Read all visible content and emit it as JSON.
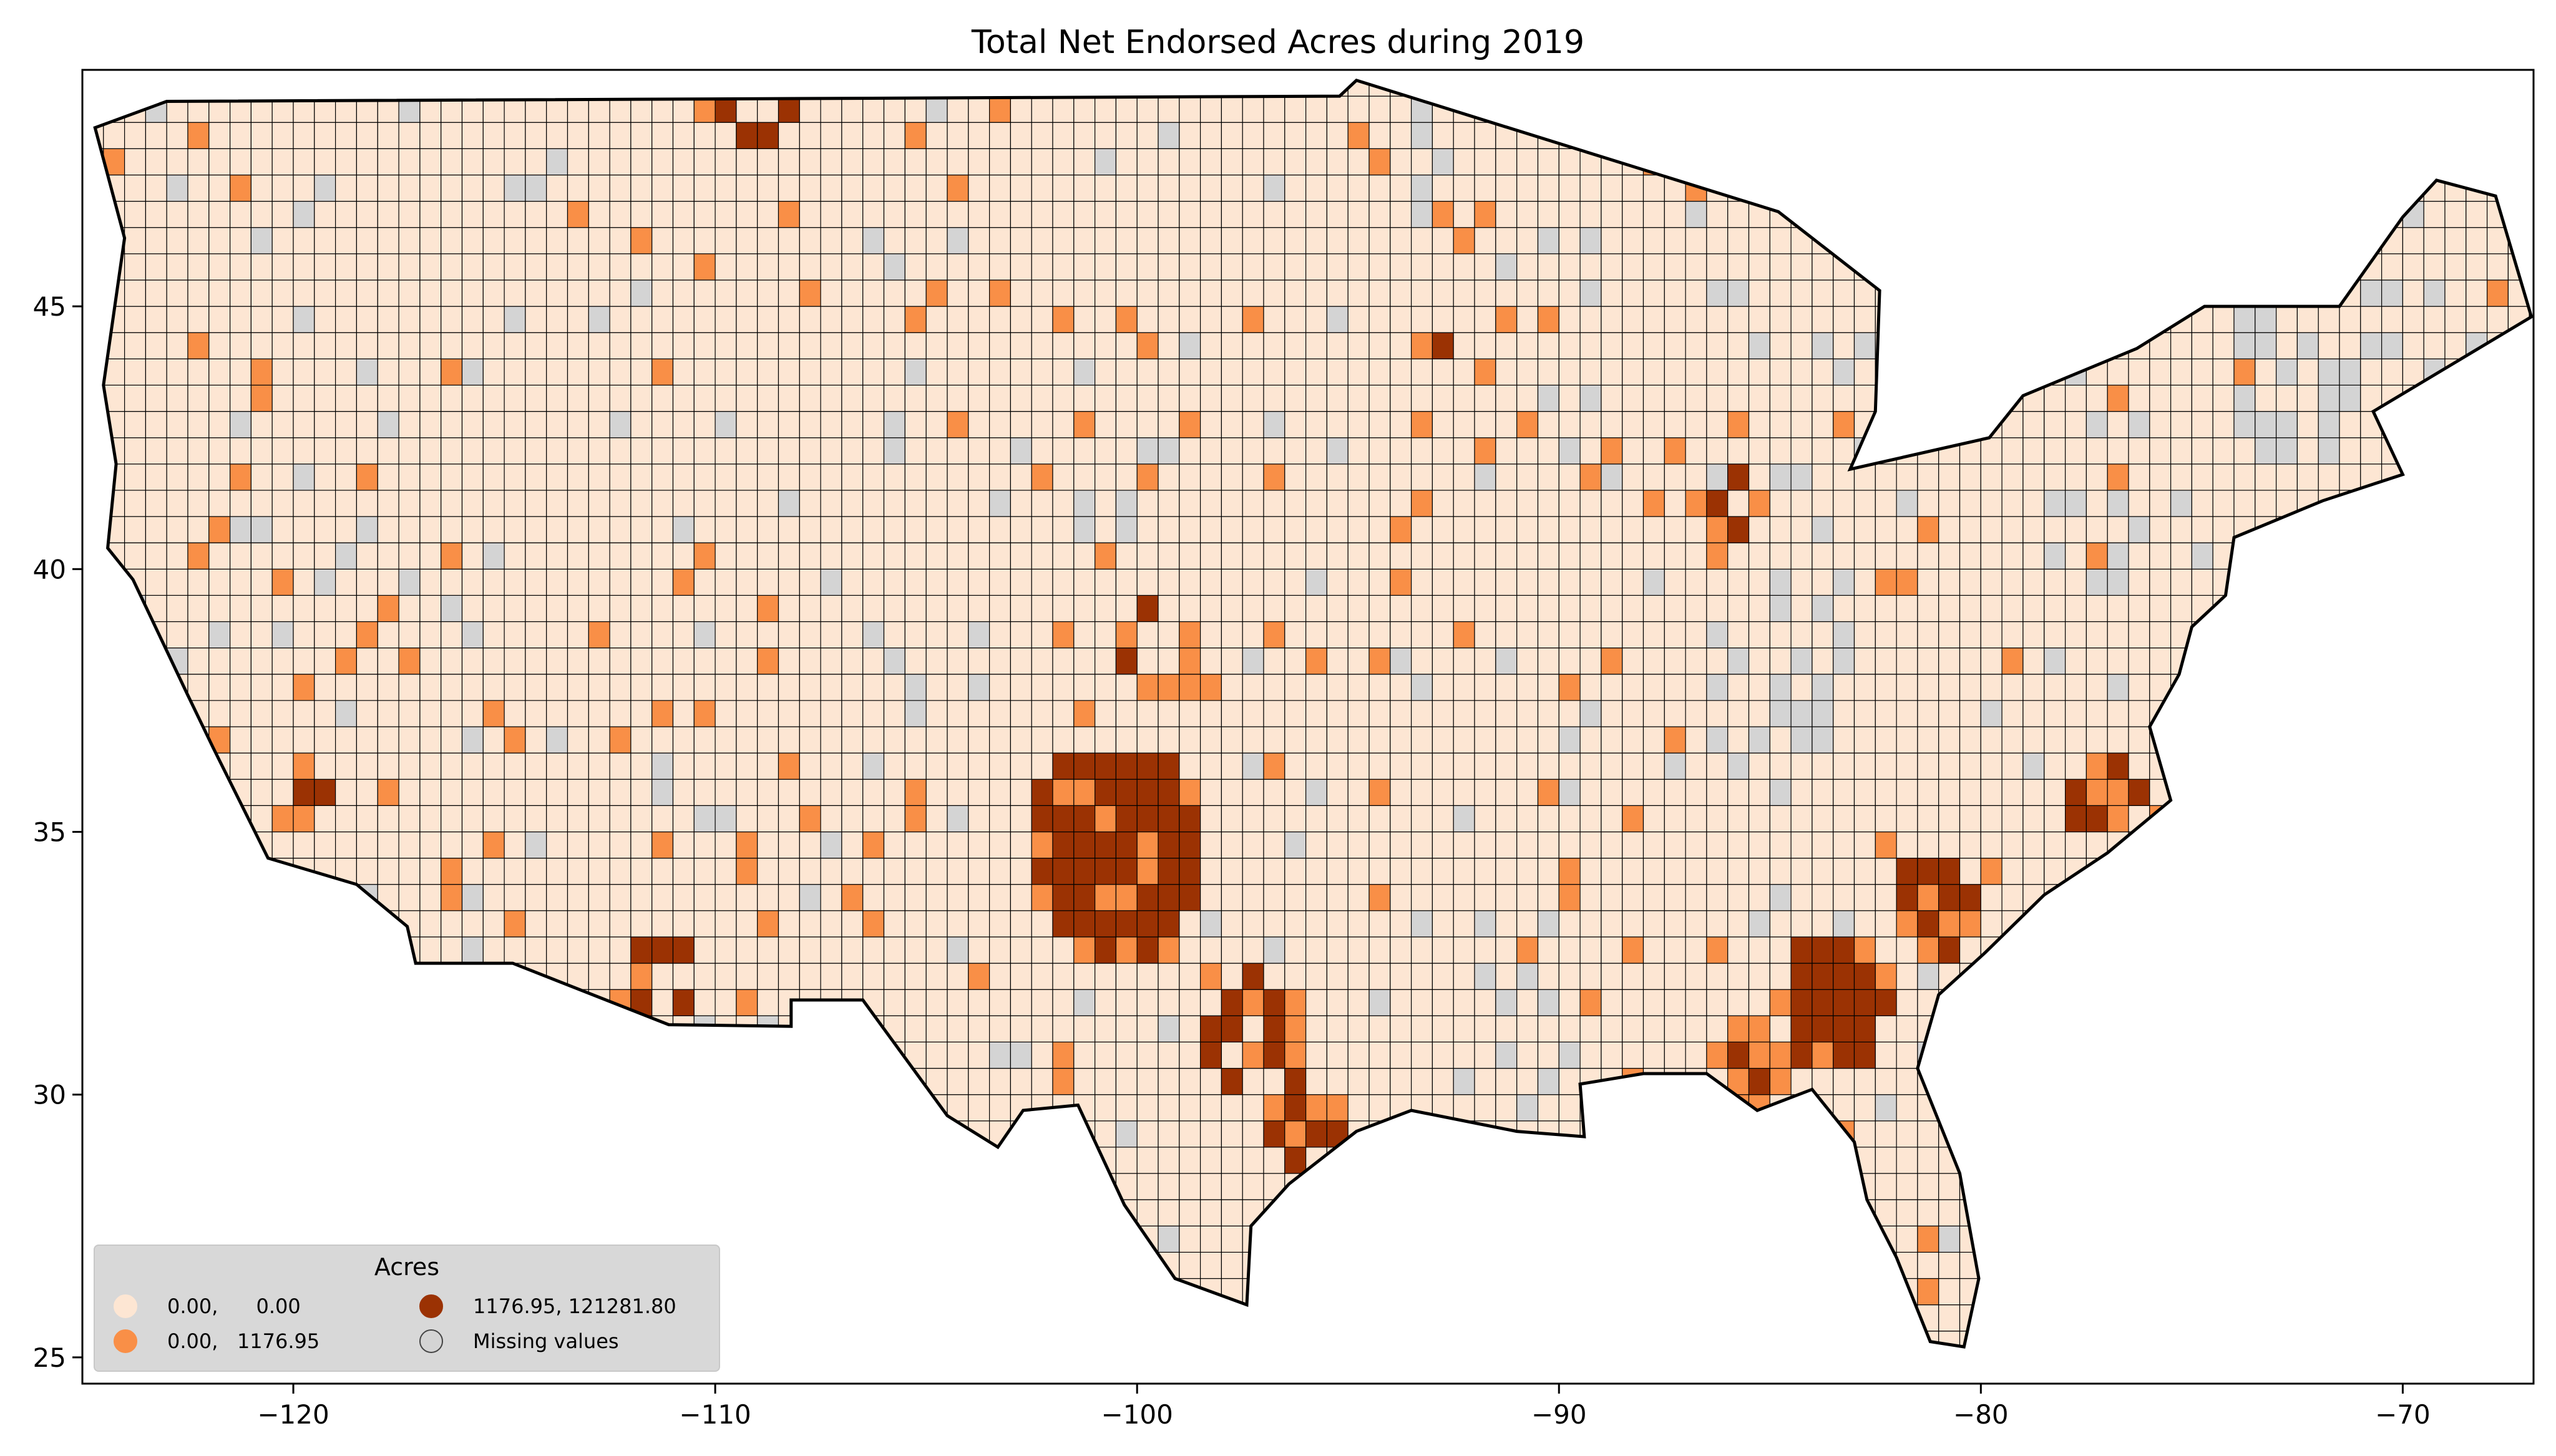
{
  "title": "Total Net Endorsed Acres during 2019",
  "colors": {
    "low": "#fde6d3",
    "mid": "#f98f47",
    "high": "#9b3203",
    "missing": "#d4d4d4",
    "border": "#000000",
    "background": "#ffffff"
  },
  "legend": {
    "title": "Acres",
    "placement": "lower-left",
    "items": [
      {
        "label": "0.00,      0.00",
        "class": "low"
      },
      {
        "label": "0.00,   1176.95",
        "class": "mid"
      },
      {
        "label": "1176.95, 121281.80",
        "class": "high"
      },
      {
        "label": "Missing values",
        "class": "missing"
      }
    ]
  },
  "chart_data": {
    "type": "choropleth-map",
    "region": "Contiguous United States (counties)",
    "title": "Total Net Endorsed Acres during 2019",
    "xlim": [
      -125,
      -66.9
    ],
    "ylim": [
      24.5,
      49.5
    ],
    "x_ticks": [
      -120,
      -110,
      -100,
      -90,
      -80,
      -70
    ],
    "x_tick_labels": [
      "−120",
      "−110",
      "−100",
      "−90",
      "−80",
      "−70"
    ],
    "y_ticks": [
      25,
      30,
      35,
      40,
      45
    ],
    "y_tick_labels": [
      "25",
      "30",
      "35",
      "40",
      "45"
    ],
    "classes": [
      {
        "range": [
          0.0,
          0.0
        ],
        "label": "0.00,      0.00"
      },
      {
        "range": [
          0.0,
          1176.95
        ],
        "label": "0.00,   1176.95"
      },
      {
        "range": [
          1176.95,
          121281.8
        ],
        "label": "1176.95, 121281.80"
      },
      {
        "range": null,
        "label": "Missing values"
      }
    ],
    "notable_high_regions": [
      "Oklahoma / North Texas",
      "Central & South Texas",
      "South Georgia",
      "South Carolina",
      "Eastern North Carolina",
      "Western Kansas",
      "Northern Indiana / Ohio",
      "Southern Arizona",
      "Northern Montana"
    ]
  }
}
